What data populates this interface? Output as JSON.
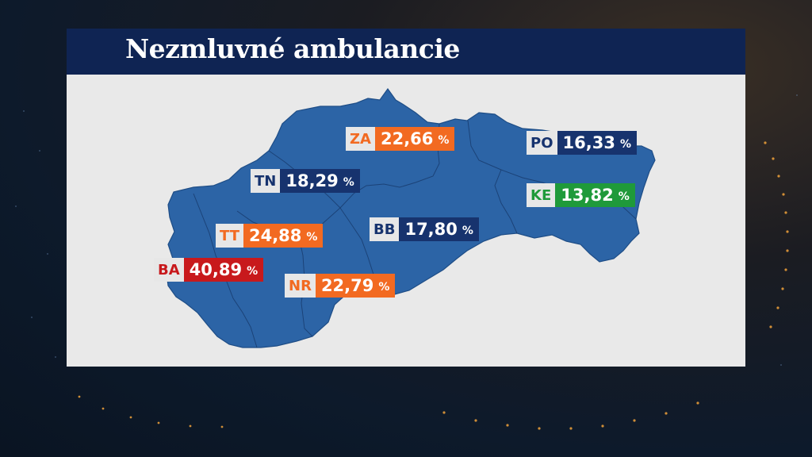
{
  "title": "Nezmluvné ambulancie",
  "colors": {
    "title_bar": "#0f2453",
    "map_fill": "#2c64a6",
    "orange": "#f26a21",
    "navy": "#17336e",
    "red": "#c8191c",
    "green": "#1f9a3a"
  },
  "regions": [
    {
      "code": "ZA",
      "value": "22,66",
      "unit": "%",
      "color": "orange"
    },
    {
      "code": "PO",
      "value": "16,33",
      "unit": "%",
      "color": "navy"
    },
    {
      "code": "TN",
      "value": "18,29",
      "unit": "%",
      "color": "navy"
    },
    {
      "code": "KE",
      "value": "13,82",
      "unit": "%",
      "color": "green"
    },
    {
      "code": "TT",
      "value": "24,88",
      "unit": "%",
      "color": "orange"
    },
    {
      "code": "BB",
      "value": "17,80",
      "unit": "%",
      "color": "navy"
    },
    {
      "code": "BA",
      "value": "40,89",
      "unit": "%",
      "color": "red"
    },
    {
      "code": "NR",
      "value": "22,79",
      "unit": "%",
      "color": "orange"
    }
  ]
}
